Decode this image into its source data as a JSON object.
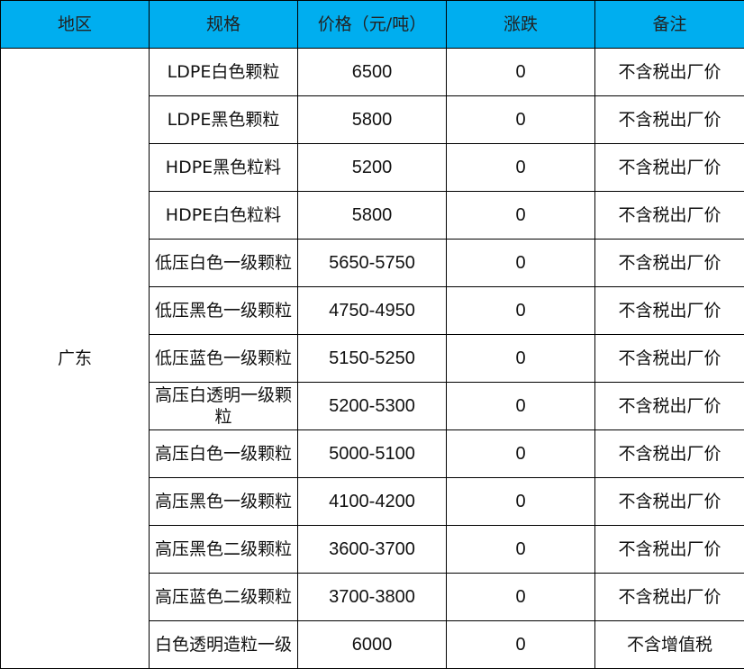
{
  "header_color": "#00aeef",
  "headers": [
    "地区",
    "规格",
    "价格（元/吨）",
    "涨跌",
    "备注"
  ],
  "region": "广东",
  "rows": [
    {
      "spec": "LDPE白色颗粒",
      "price": "6500",
      "change": "0",
      "note": "不含税出厂价"
    },
    {
      "spec": "LDPE黑色颗粒",
      "price": "5800",
      "change": "0",
      "note": "不含税出厂价"
    },
    {
      "spec": "HDPE黑色粒料",
      "price": "5200",
      "change": "0",
      "note": "不含税出厂价"
    },
    {
      "spec": "HDPE白色粒料",
      "price": "5800",
      "change": "0",
      "note": "不含税出厂价"
    },
    {
      "spec": "低压白色一级颗粒",
      "price": "5650-5750",
      "change": "0",
      "note": "不含税出厂价"
    },
    {
      "spec": "低压黑色一级颗粒",
      "price": "4750-4950",
      "change": "0",
      "note": "不含税出厂价"
    },
    {
      "spec": "低压蓝色一级颗粒",
      "price": "5150-5250",
      "change": "0",
      "note": "不含税出厂价"
    },
    {
      "spec": "高压白透明一级颗粒",
      "price": "5200-5300",
      "change": "0",
      "note": "不含税出厂价"
    },
    {
      "spec": "高压白色一级颗粒",
      "price": "5000-5100",
      "change": "0",
      "note": "不含税出厂价"
    },
    {
      "spec": "高压黑色一级颗粒",
      "price": "4100-4200",
      "change": "0",
      "note": "不含税出厂价"
    },
    {
      "spec": "高压黑色二级颗粒",
      "price": "3600-3700",
      "change": "0",
      "note": "不含税出厂价"
    },
    {
      "spec": "高压蓝色二级颗粒",
      "price": "3700-3800",
      "change": "0",
      "note": "不含税出厂价"
    },
    {
      "spec": "白色透明造粒一级",
      "price": "6000",
      "change": "0",
      "note": "不含增值税"
    }
  ]
}
